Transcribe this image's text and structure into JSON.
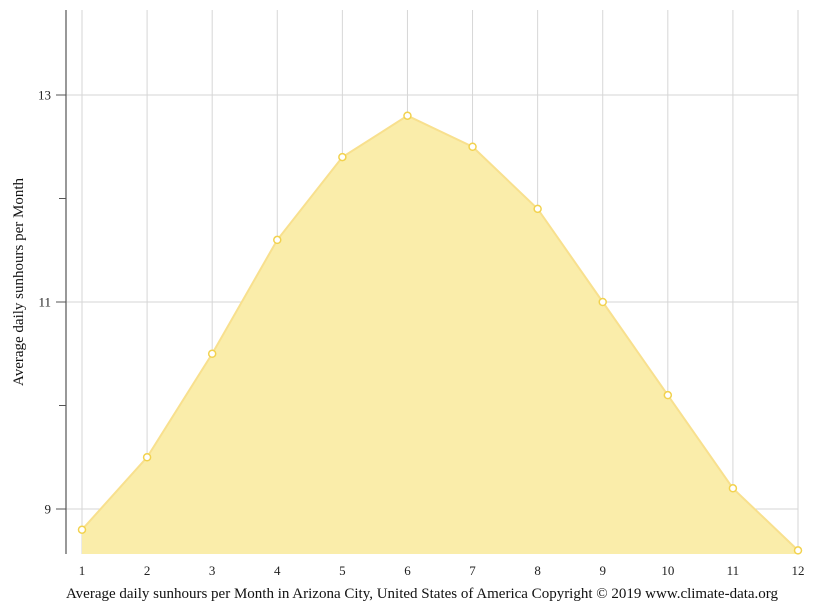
{
  "chart_data": {
    "type": "area",
    "title": "",
    "caption": "Average daily sunhours per Month in Arizona City, United States of America Copyright © 2019 www.climate-data.org",
    "xlabel": "",
    "ylabel": "Average daily sunhours per Month",
    "categories": [
      "1",
      "2",
      "3",
      "4",
      "5",
      "6",
      "7",
      "8",
      "9",
      "10",
      "11",
      "12"
    ],
    "series": [
      {
        "name": "Average daily sunhours",
        "values": [
          8.8,
          9.5,
          10.5,
          11.6,
          12.4,
          12.8,
          12.5,
          11.9,
          11.0,
          10.1,
          9.2,
          8.6
        ]
      }
    ],
    "yticks_labeled": [
      9,
      11,
      13
    ],
    "yticks_minor": [
      10,
      12
    ],
    "ylim": [
      8.57,
      13.82
    ],
    "grid": true,
    "legend": "none",
    "colors": {
      "fill": "#FAEDAA",
      "stroke": "#F8E08E",
      "point_fill": "#FFFFFF",
      "point_stroke": "#F2D24E",
      "grid": "#D6D6D6",
      "axis": "#555555"
    }
  }
}
